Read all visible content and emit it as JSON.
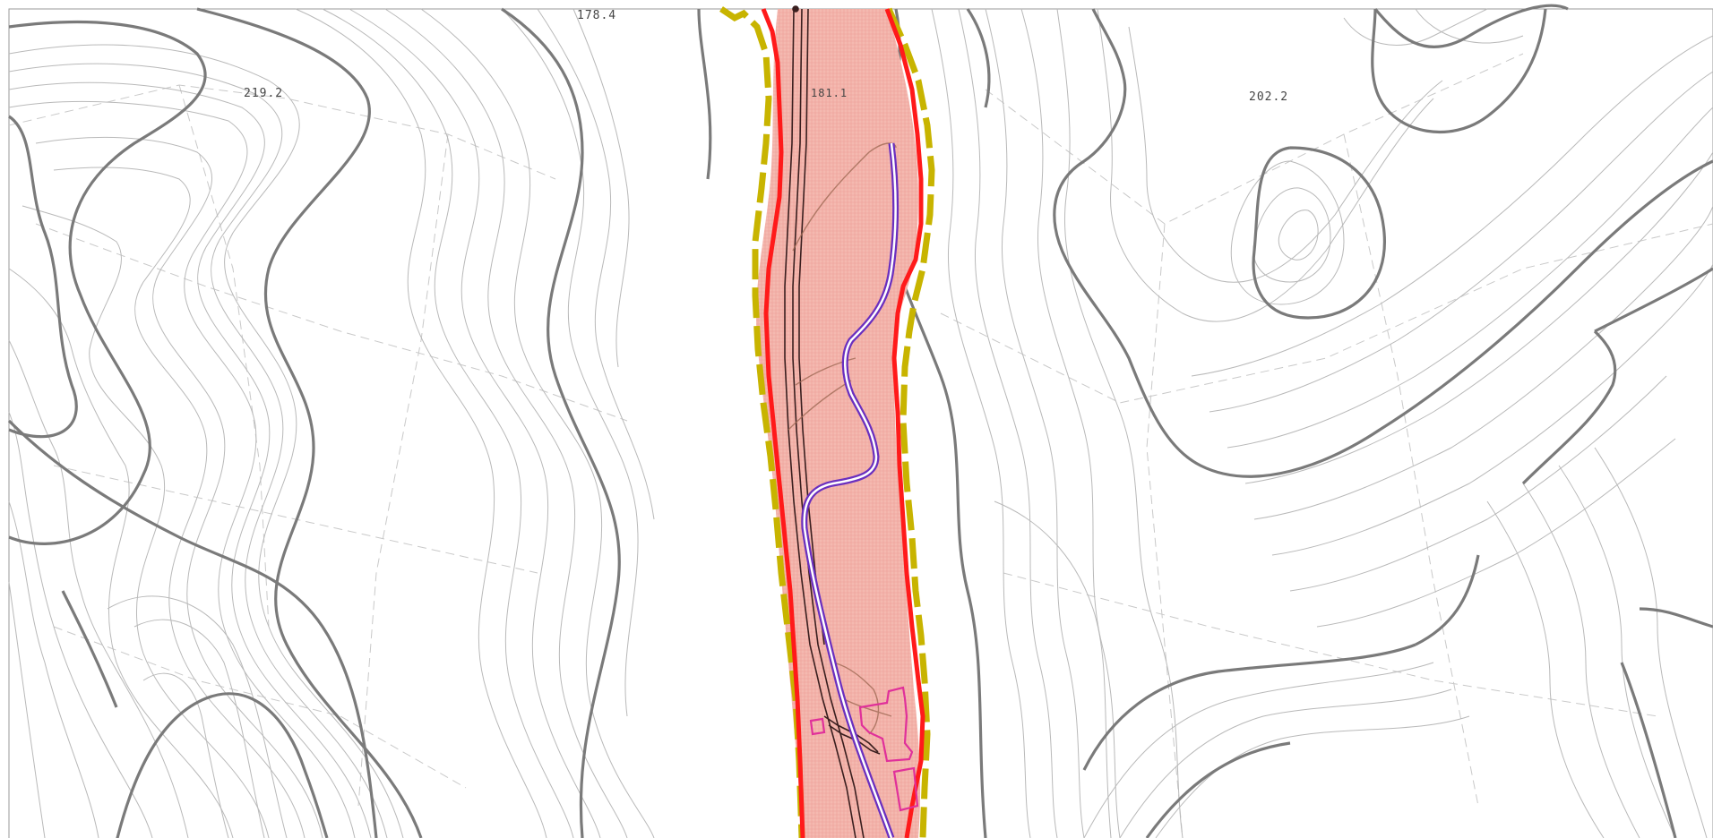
{
  "map": {
    "elevation_labels": [
      {
        "id": "label-178-4",
        "text": "178.4"
      },
      {
        "id": "label-219-2",
        "text": "219.2"
      },
      {
        "id": "label-202-2",
        "text": "202.2"
      },
      {
        "id": "label-corridor",
        "text": "181.1"
      }
    ],
    "colors": {
      "corridor_fill": "#f4b9b0",
      "boundary_red": "#ff1a1a",
      "buffer_yellow": "#c8b400",
      "road_purple": "#6a2fbf",
      "building_magenta": "#e0309a",
      "track_dark": "#3a1f1f",
      "contour_index": "#7a7a7a",
      "contour_minor": "#b9b9b9"
    },
    "features": [
      "contour-lines",
      "river-corridor",
      "red-boundary",
      "yellow-buffer",
      "purple-road",
      "dark-track",
      "magenta-buildings"
    ]
  }
}
